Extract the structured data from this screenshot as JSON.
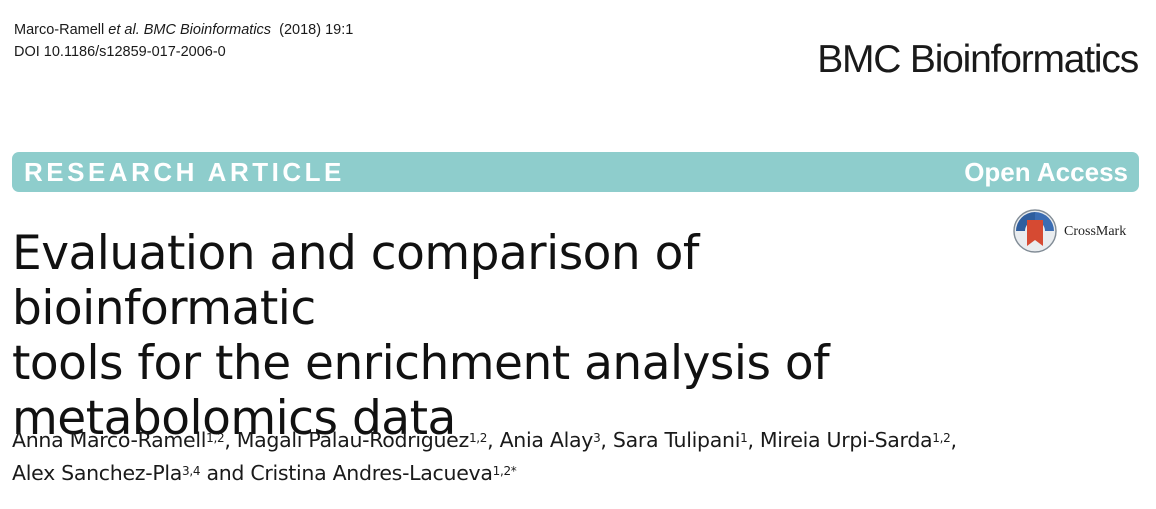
{
  "citation": {
    "authors_short": "Marco-Ramell",
    "et_al": "et al.",
    "journal": "BMC Bioinformatics",
    "year_vol": "(2018) 19:1",
    "doi": "DOI 10.1186/s12859-017-2006-0"
  },
  "journal_logo": "BMC Bioinformatics",
  "banner": {
    "type": "RESEARCH ARTICLE",
    "access": "Open Access",
    "color": "#8ecdcc"
  },
  "crossmark": {
    "label": "CrossMark",
    "icon": "crossmark-icon"
  },
  "title": {
    "line1": "Evaluation and comparison of bioinformatic",
    "line2": "tools for the enrichment analysis of",
    "line3": "metabolomics data"
  },
  "authors": [
    {
      "name": "Anna Marco-Ramell",
      "aff": "1,2",
      "sep": ", "
    },
    {
      "name": "Magali Palau-Rodriguez",
      "aff": "1,2",
      "sep": ", "
    },
    {
      "name": "Ania Alay",
      "aff": "3",
      "sep": ", "
    },
    {
      "name": "Sara Tulipani",
      "aff": "1",
      "sep": ", "
    },
    {
      "name": "Mireia Urpi-Sarda",
      "aff": "1,2",
      "sep": ","
    },
    {
      "name": "Alex Sanchez-Pla",
      "aff": "3,4",
      "sep": " and "
    },
    {
      "name": "Cristina Andres-Lacueva",
      "aff": "1,2*",
      "sep": ""
    }
  ]
}
